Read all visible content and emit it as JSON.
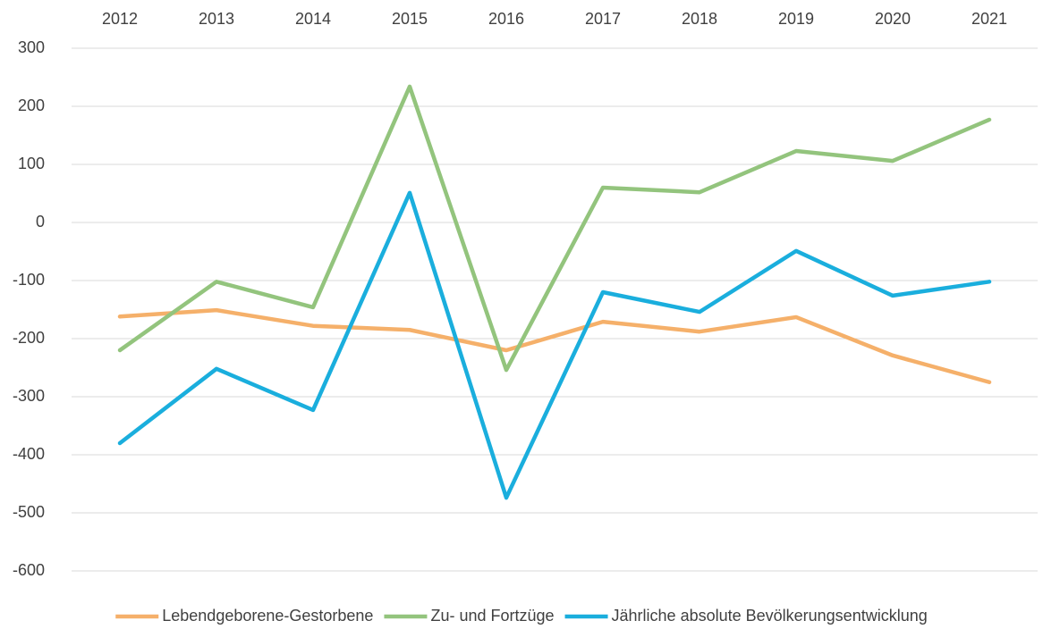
{
  "chart_data": {
    "type": "line",
    "categories": [
      "2012",
      "2013",
      "2014",
      "2015",
      "2016",
      "2017",
      "2018",
      "2019",
      "2020",
      "2021"
    ],
    "series": [
      {
        "name": "Lebendgeborene-Gestorbene",
        "color": "#f5b06a",
        "values": [
          -162,
          -151,
          -178,
          -185,
          -220,
          -171,
          -188,
          -163,
          -229,
          -275
        ]
      },
      {
        "name": "Zu- und Fortzüge",
        "color": "#93c47d",
        "values": [
          -220,
          -102,
          -146,
          234,
          -254,
          60,
          52,
          123,
          106,
          177
        ]
      },
      {
        "name": "Jährliche absolute Bevölkerungsentwicklung",
        "color": "#1aaedd",
        "values": [
          -380,
          -252,
          -323,
          51,
          -474,
          -120,
          -154,
          -49,
          -126,
          -102
        ]
      }
    ],
    "ylim": [
      -600,
      300
    ],
    "yticks": [
      -600,
      -500,
      -400,
      -300,
      -200,
      -100,
      0,
      100,
      200,
      300
    ],
    "grid": true,
    "legend": "bottom"
  }
}
